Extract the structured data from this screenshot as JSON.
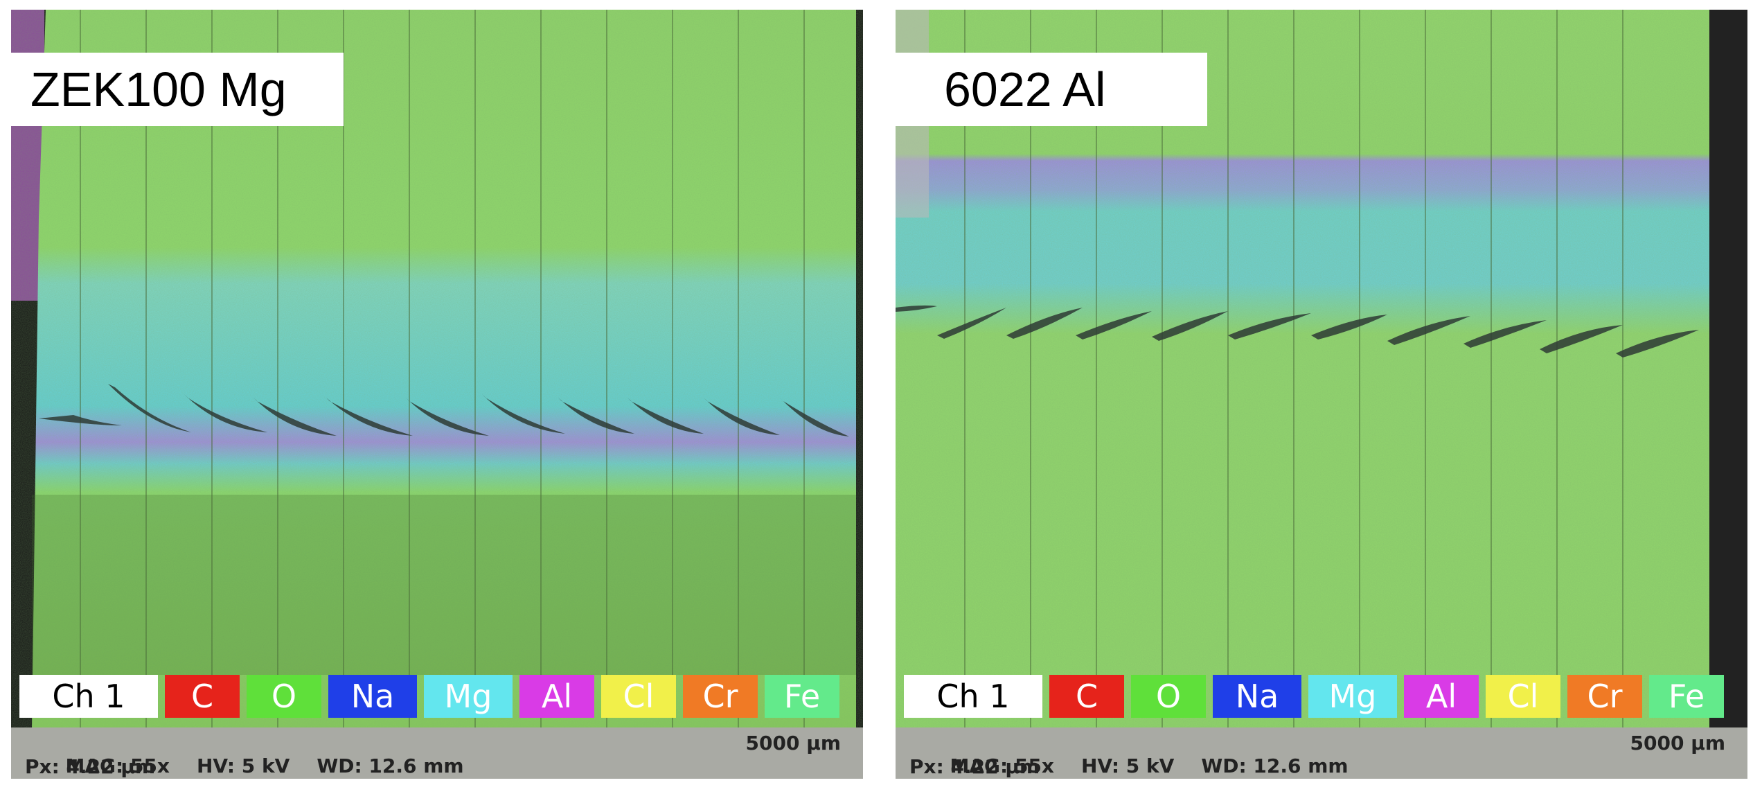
{
  "panels": [
    {
      "title": "ZEK100 Mg",
      "legend": [
        {
          "label": "Ch 1",
          "bg": "#ffffff",
          "fg": "#000000"
        },
        {
          "label": "C",
          "bg": "#e6231b",
          "fg": "#ffffff"
        },
        {
          "label": "O",
          "bg": "#5fe03a",
          "fg": "#ffffff"
        },
        {
          "label": "Na",
          "bg": "#1f3fe8",
          "fg": "#ffffff"
        },
        {
          "label": "Mg",
          "bg": "#63e6ee",
          "fg": "#ffffff"
        },
        {
          "label": "Al",
          "bg": "#d93be6",
          "fg": "#ffffff"
        },
        {
          "label": "Cl",
          "bg": "#f1f04a",
          "fg": "#ffffff"
        },
        {
          "label": "Cr",
          "bg": "#f07a25",
          "fg": "#ffffff"
        },
        {
          "label": "Fe",
          "bg": "#63ea8b",
          "fg": "#ffffff"
        }
      ],
      "info": {
        "mag": "MAG: 55x",
        "hv": "HV: 5 kV",
        "wd": "WD: 12.6 mm",
        "px": "Px: 4.22 µm",
        "scale": "5000 µm"
      }
    },
    {
      "title": "6022 Al",
      "legend": [
        {
          "label": "Ch 1",
          "bg": "#ffffff",
          "fg": "#000000"
        },
        {
          "label": "C",
          "bg": "#e6231b",
          "fg": "#ffffff"
        },
        {
          "label": "O",
          "bg": "#5fe03a",
          "fg": "#ffffff"
        },
        {
          "label": "Na",
          "bg": "#1f3fe8",
          "fg": "#ffffff"
        },
        {
          "label": "Mg",
          "bg": "#63e6ee",
          "fg": "#ffffff"
        },
        {
          "label": "Al",
          "bg": "#d93be6",
          "fg": "#ffffff"
        },
        {
          "label": "Cl",
          "bg": "#f1f04a",
          "fg": "#ffffff"
        },
        {
          "label": "Cr",
          "bg": "#f07a25",
          "fg": "#ffffff"
        },
        {
          "label": "Fe",
          "bg": "#63ea8b",
          "fg": "#ffffff"
        }
      ],
      "info": {
        "mag": "MAG: 55x",
        "hv": "HV: 5 kV",
        "wd": "WD: 12.6 mm",
        "px": "Px: 4.22 µm",
        "scale": "5000 µm"
      }
    }
  ]
}
